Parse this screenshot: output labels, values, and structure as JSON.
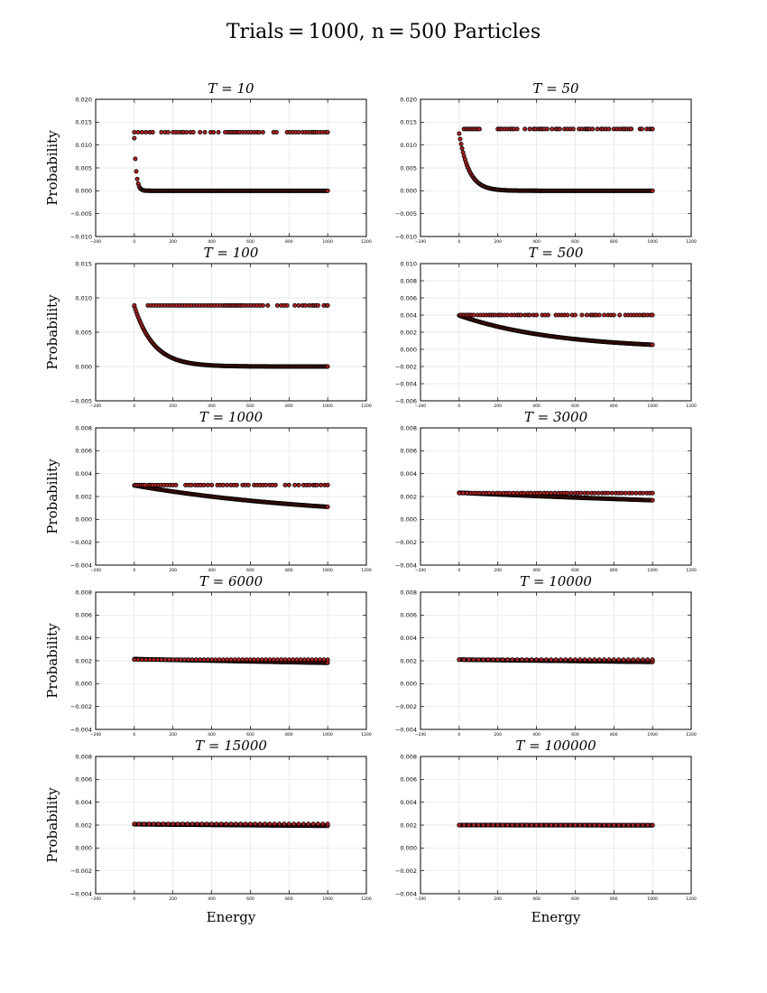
{
  "figure_title": "Trials = 1000, n = 500 Particles",
  "colors": {
    "marker_fill": "#b22222",
    "marker_edge": "#000000",
    "grid": "#e3e3e3"
  },
  "chart_data": [
    {
      "type": "scatter",
      "title": "T = 10",
      "ylabel": "Probability",
      "xlabel": "",
      "xlim": [
        -200,
        1200
      ],
      "ylim": [
        -0.01,
        0.02
      ],
      "xticks": [
        "−200",
        "0",
        "200",
        "400",
        "600",
        "800",
        "1000",
        "1200"
      ],
      "yticks": [
        "−0.010",
        "−0.005",
        "0.000",
        "0.005",
        "0.010",
        "0.015",
        "0.020"
      ],
      "curve": {
        "formula": "p0*exp(-E/T)",
        "p0": 0.0115,
        "T": 10,
        "x_range": [
          0,
          1000
        ]
      },
      "plateau": {
        "y": 0.0128,
        "x": [
          0,
          20,
          40,
          60,
          80,
          95,
          140,
          160,
          175,
          200,
          215,
          230,
          245,
          255,
          270,
          290,
          305,
          340,
          365,
          395,
          410,
          435,
          470,
          485,
          495,
          505,
          515,
          525,
          535,
          545,
          560,
          575,
          590,
          605,
          620,
          635,
          645,
          665,
          720,
          735,
          790,
          805,
          820,
          835,
          850,
          870,
          885,
          900,
          915,
          925,
          935,
          945,
          960,
          975,
          990,
          1000
        ]
      },
      "grid": true
    },
    {
      "type": "scatter",
      "title": "T = 50",
      "ylabel": "",
      "xlabel": "",
      "xlim": [
        -200,
        1200
      ],
      "ylim": [
        -0.01,
        0.02
      ],
      "xticks": [
        "−200",
        "0",
        "200",
        "400",
        "600",
        "800",
        "1000",
        "1200"
      ],
      "yticks": [
        "−0.010",
        "−0.005",
        "0.000",
        "0.005",
        "0.010",
        "0.015",
        "0.020"
      ],
      "curve": {
        "formula": "p0*exp(-E/T)",
        "p0": 0.0125,
        "T": 50,
        "x_range": [
          0,
          1000
        ]
      },
      "plateau": {
        "y": 0.0135,
        "x": [
          25,
          35,
          45,
          55,
          65,
          75,
          85,
          95,
          105,
          200,
          210,
          220,
          235,
          250,
          265,
          275,
          285,
          300,
          340,
          365,
          385,
          395,
          410,
          420,
          430,
          440,
          455,
          480,
          500,
          510,
          520,
          545,
          560,
          575,
          590,
          620,
          635,
          650,
          660,
          665,
          675,
          690,
          715,
          735,
          745,
          760,
          775,
          800,
          815,
          830,
          845,
          855,
          865,
          880,
          890,
          935,
          945,
          970,
          985,
          995,
          1000
        ]
      },
      "grid": true
    },
    {
      "type": "scatter",
      "title": "T = 100",
      "ylabel": "Probability",
      "xlabel": "",
      "xlim": [
        -200,
        1200
      ],
      "ylim": [
        -0.005,
        0.015
      ],
      "xticks": [
        "−200",
        "0",
        "200",
        "400",
        "600",
        "800",
        "1000",
        "1200"
      ],
      "yticks": [
        "−0.005",
        "0.000",
        "0.005",
        "0.010",
        "0.015"
      ],
      "curve": {
        "formula": "p0*exp(-E/T)",
        "p0": 0.0088,
        "T": 100,
        "x_range": [
          0,
          1000
        ]
      },
      "plateau": {
        "y": 0.0089,
        "x": [
          0,
          70,
          85,
          100,
          115,
          130,
          145,
          160,
          175,
          190,
          205,
          220,
          235,
          250,
          265,
          280,
          295,
          310,
          325,
          340,
          355,
          370,
          385,
          400,
          415,
          430,
          445,
          460,
          470,
          480,
          490,
          500,
          510,
          520,
          530,
          540,
          550,
          560,
          575,
          590,
          605,
          620,
          635,
          650,
          665,
          690,
          740,
          760,
          775,
          790,
          830,
          850,
          870,
          885,
          905,
          920,
          930,
          940,
          950,
          980,
          995,
          1000
        ]
      },
      "grid": true
    },
    {
      "type": "scatter",
      "title": "T = 500",
      "ylabel": "",
      "xlabel": "",
      "xlim": [
        -200,
        1200
      ],
      "ylim": [
        -0.006,
        0.01
      ],
      "xticks": [
        "−200",
        "0",
        "200",
        "400",
        "600",
        "800",
        "1000",
        "1200"
      ],
      "yticks": [
        "−0.006",
        "−0.004",
        "−0.002",
        "0.000",
        "0.002",
        "0.004",
        "0.006",
        "0.008",
        "0.010"
      ],
      "curve": {
        "formula": "p0*exp(-E/T)",
        "p0": 0.00395,
        "T": 500,
        "x_range": [
          0,
          1000
        ]
      },
      "plateau": {
        "y": 0.004,
        "x": [
          5,
          15,
          25,
          35,
          45,
          55,
          65,
          75,
          95,
          110,
          125,
          140,
          155,
          165,
          175,
          185,
          200,
          210,
          220,
          235,
          250,
          270,
          285,
          300,
          310,
          320,
          340,
          355,
          365,
          385,
          400,
          430,
          445,
          460,
          500,
          515,
          530,
          545,
          560,
          585,
          600,
          635,
          660,
          680,
          690,
          700,
          710,
          725,
          750,
          770,
          785,
          800,
          830,
          860,
          875,
          890,
          905,
          920,
          935,
          950,
          960,
          975,
          990,
          1000
        ]
      },
      "grid": true
    },
    {
      "type": "scatter",
      "title": "T = 1000",
      "ylabel": "Probability",
      "xlabel": "",
      "xlim": [
        -200,
        1200
      ],
      "ylim": [
        -0.004,
        0.008
      ],
      "xticks": [
        "−200",
        "0",
        "200",
        "400",
        "600",
        "800",
        "1000",
        "1200"
      ],
      "yticks": [
        "−0.004",
        "−0.002",
        "0.000",
        "0.002",
        "0.004",
        "0.006",
        "0.008"
      ],
      "curve": {
        "formula": "p0*exp(-E/T)",
        "p0": 0.00297,
        "T": 1000,
        "x_range": [
          0,
          1000
        ]
      },
      "plateau": {
        "y": 0.003,
        "x": [
          5,
          15,
          25,
          35,
          45,
          55,
          75,
          85,
          95,
          110,
          125,
          140,
          155,
          170,
          185,
          200,
          215,
          265,
          280,
          295,
          315,
          330,
          345,
          360,
          380,
          400,
          430,
          445,
          460,
          480,
          500,
          515,
          530,
          560,
          575,
          590,
          620,
          635,
          650,
          665,
          680,
          700,
          715,
          730,
          780,
          800,
          830,
          850,
          875,
          890,
          905,
          925,
          935,
          945,
          965,
          985,
          1000
        ]
      },
      "grid": true
    },
    {
      "type": "scatter",
      "title": "T = 3000",
      "ylabel": "",
      "xlabel": "",
      "xlim": [
        -200,
        1200
      ],
      "ylim": [
        -0.004,
        0.008
      ],
      "xticks": [
        "−200",
        "0",
        "200",
        "400",
        "600",
        "800",
        "1000",
        "1200"
      ],
      "yticks": [
        "−0.004",
        "−0.002",
        "0.000",
        "0.002",
        "0.004",
        "0.006",
        "0.008"
      ],
      "curve": {
        "formula": "p0*exp(-E/T)",
        "p0": 0.00233,
        "T": 3000,
        "x_range": [
          0,
          1000
        ]
      },
      "plateau": {
        "y": 0.0023,
        "x": [
          0,
          20,
          40,
          60,
          75,
          90,
          105,
          125,
          140,
          155,
          175,
          195,
          210,
          230,
          245,
          260,
          280,
          300,
          320,
          335,
          355,
          370,
          390,
          405,
          420,
          440,
          455,
          475,
          495,
          515,
          530,
          545,
          560,
          580,
          600,
          615,
          630,
          650,
          665,
          685,
          700,
          720,
          740,
          755,
          770,
          790,
          810,
          825,
          840,
          860,
          880,
          895,
          915,
          935,
          950,
          970,
          985,
          1000
        ]
      },
      "grid": true
    },
    {
      "type": "scatter",
      "title": "T = 6000",
      "ylabel": "Probability",
      "xlabel": "",
      "xlim": [
        -200,
        1200
      ],
      "ylim": [
        -0.004,
        0.008
      ],
      "xticks": [
        "−200",
        "0",
        "200",
        "400",
        "600",
        "800",
        "1000",
        "1200"
      ],
      "yticks": [
        "−0.004",
        "−0.002",
        "0.000",
        "0.002",
        "0.004",
        "0.006",
        "0.008"
      ],
      "curve": {
        "formula": "p0*exp(-E/T)",
        "p0": 0.00215,
        "T": 6000,
        "x_range": [
          0,
          1000
        ]
      },
      "plateau": {
        "y": 0.0021,
        "x": [
          0,
          20,
          40,
          60,
          80,
          100,
          120,
          140,
          160,
          180,
          200,
          220,
          240,
          260,
          280,
          300,
          320,
          340,
          360,
          380,
          400,
          420,
          440,
          460,
          480,
          500,
          520,
          540,
          560,
          580,
          600,
          620,
          640,
          660,
          680,
          700,
          720,
          740,
          760,
          780,
          800,
          820,
          840,
          860,
          880,
          900,
          920,
          940,
          960,
          980,
          1000
        ]
      },
      "grid": true
    },
    {
      "type": "scatter",
      "title": "T = 10000",
      "ylabel": "",
      "xlabel": "",
      "xlim": [
        -200,
        1200
      ],
      "ylim": [
        -0.004,
        0.008
      ],
      "xticks": [
        "−200",
        "0",
        "200",
        "400",
        "600",
        "800",
        "1000",
        "1200"
      ],
      "yticks": [
        "−0.004",
        "−0.002",
        "0.000",
        "0.002",
        "0.004",
        "0.006",
        "0.008"
      ],
      "curve": {
        "formula": "p0*exp(-E/T)",
        "p0": 0.0021,
        "T": 10000,
        "x_range": [
          0,
          1000
        ]
      },
      "plateau": {
        "y": 0.0021,
        "x": [
          0,
          25,
          50,
          75,
          100,
          125,
          150,
          175,
          200,
          225,
          250,
          275,
          300,
          325,
          350,
          375,
          400,
          425,
          450,
          475,
          500,
          525,
          550,
          575,
          600,
          625,
          650,
          675,
          700,
          725,
          750,
          775,
          800,
          825,
          850,
          875,
          900,
          925,
          950,
          975,
          1000
        ]
      },
      "grid": true
    },
    {
      "type": "scatter",
      "title": "T = 15000",
      "ylabel": "Probability",
      "xlabel": "Energy",
      "xlim": [
        -200,
        1200
      ],
      "ylim": [
        -0.004,
        0.008
      ],
      "xticks": [
        "−200",
        "0",
        "200",
        "400",
        "600",
        "800",
        "1000",
        "1200"
      ],
      "yticks": [
        "−0.004",
        "−0.002",
        "0.000",
        "0.002",
        "0.004",
        "0.006",
        "0.008"
      ],
      "curve": {
        "formula": "p0*exp(-E/T)",
        "p0": 0.00207,
        "T": 15000,
        "x_range": [
          0,
          1000
        ]
      },
      "plateau": {
        "y": 0.0021,
        "x": [
          0,
          25,
          50,
          75,
          100,
          125,
          150,
          175,
          200,
          225,
          250,
          275,
          300,
          325,
          350,
          375,
          400,
          425,
          450,
          475,
          500,
          525,
          550,
          575,
          600,
          625,
          650,
          675,
          700,
          725,
          750,
          775,
          800,
          825,
          850,
          875,
          900,
          925,
          950,
          975,
          1000
        ]
      },
      "grid": true
    },
    {
      "type": "scatter",
      "title": "T = 100000",
      "ylabel": "",
      "xlabel": "Energy",
      "xlim": [
        -200,
        1200
      ],
      "ylim": [
        -0.004,
        0.008
      ],
      "xticks": [
        "−200",
        "0",
        "200",
        "400",
        "600",
        "800",
        "1000",
        "1200"
      ],
      "yticks": [
        "−0.004",
        "−0.002",
        "0.000",
        "0.002",
        "0.004",
        "0.006",
        "0.008"
      ],
      "curve": {
        "formula": "p0*exp(-E/T)",
        "p0": 0.002,
        "T": 100000,
        "x_range": [
          0,
          1000
        ]
      },
      "plateau": {
        "y": 0.002,
        "x": [
          0,
          25,
          50,
          75,
          100,
          125,
          150,
          175,
          200,
          225,
          250,
          275,
          300,
          325,
          350,
          375,
          400,
          425,
          450,
          475,
          500,
          525,
          550,
          575,
          600,
          625,
          650,
          675,
          700,
          725,
          750,
          775,
          800,
          825,
          850,
          875,
          900,
          925,
          950,
          975,
          1000
        ]
      },
      "grid": true
    }
  ]
}
